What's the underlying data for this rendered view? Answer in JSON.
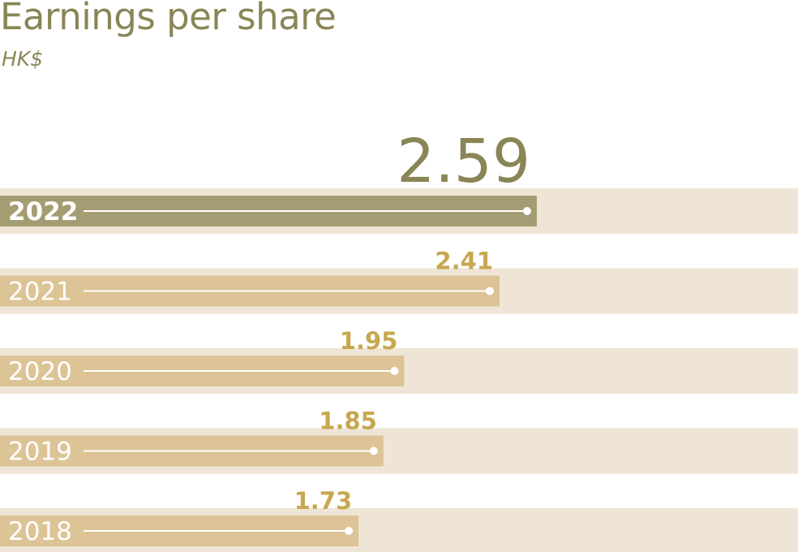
{
  "chart_data": {
    "type": "bar",
    "orientation": "horizontal",
    "title": "Earnings per share",
    "subtitle": "HK$",
    "categories": [
      "2022",
      "2021",
      "2020",
      "2019",
      "2018"
    ],
    "values": [
      2.59,
      2.41,
      1.95,
      1.85,
      1.73
    ],
    "value_labels": [
      "2.59",
      "2.41",
      "1.95",
      "1.85",
      "1.73"
    ],
    "highlight_category": "2022",
    "xlim": [
      0,
      3.85
    ],
    "grid": false,
    "legend": "none",
    "colors": {
      "highlight_bar": "#a49c72",
      "bar": "#dcc496",
      "track": "#efe5d6",
      "highlight_label": "#8a8556",
      "label": "#c7a750",
      "title": "#8a8556",
      "line": "#ffffff"
    }
  }
}
